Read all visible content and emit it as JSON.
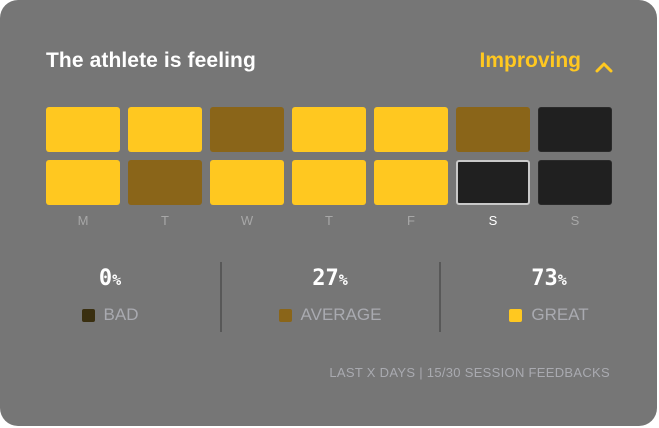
{
  "header": {
    "title": "The athlete is feeling",
    "trend_label": "Improving",
    "trend_icon": "chevron-up-icon",
    "accent_color": "#ffc820"
  },
  "grid": {
    "rows": [
      [
        "great",
        "great",
        "average",
        "great",
        "great",
        "average",
        "empty"
      ],
      [
        "great",
        "average",
        "great",
        "great",
        "great",
        "empty",
        "empty"
      ]
    ],
    "selected_day_index": 5
  },
  "days": [
    "M",
    "T",
    "W",
    "T",
    "F",
    "S",
    "S"
  ],
  "stats": [
    {
      "value": "0",
      "unit": "%",
      "label": "BAD",
      "color": "#3a2f10"
    },
    {
      "value": "27",
      "unit": "%",
      "label": "AVERAGE",
      "color": "#8a6519"
    },
    {
      "value": "73",
      "unit": "%",
      "label": "GREAT",
      "color": "#ffc820"
    }
  ],
  "footer": "LAST X DAYS | 15/30 SESSION FEEDBACKS",
  "colors": {
    "great": "#ffc820",
    "average": "#8a6519",
    "empty": "#202020",
    "card": "#767676"
  }
}
